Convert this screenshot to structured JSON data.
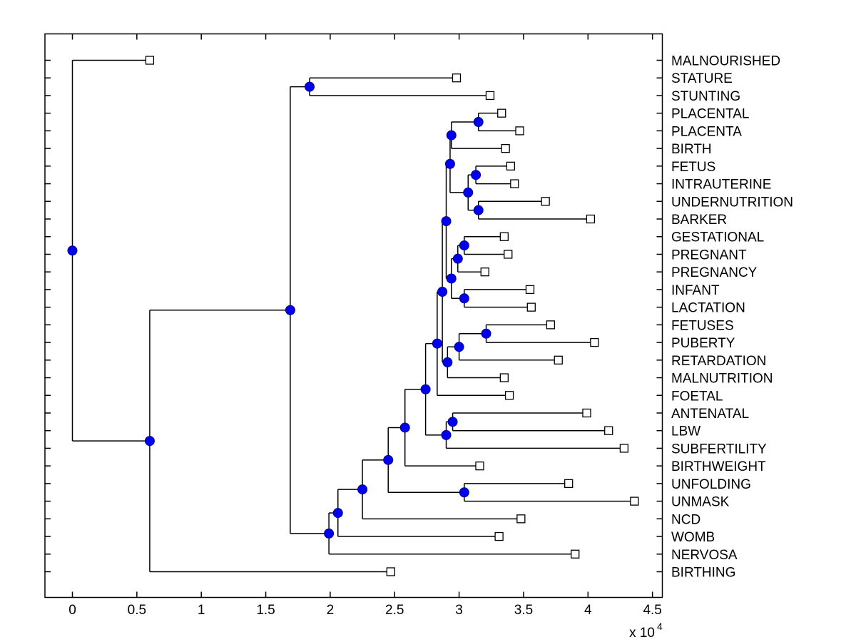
{
  "window": {
    "background": "#ffffff"
  },
  "chart_data": {
    "type": "dendrogram",
    "title": "",
    "orientation": "horizontal, root at left, leaves on right",
    "grid": false,
    "legend": false,
    "x_axis": {
      "range": [
        0,
        4.5
      ],
      "tick_labels": [
        "0",
        "0.5",
        "1",
        "1.5",
        "2",
        "2.5",
        "3",
        "3.5",
        "4",
        "4.5"
      ],
      "tick_values": [
        0,
        0.5,
        1,
        1.5,
        2,
        2.5,
        3,
        3.5,
        4,
        4.5
      ],
      "multiplier_base": "x 10",
      "multiplier_exponent": "4",
      "unit_scale": 10000
    },
    "leaves": [
      {
        "label": "MALNOURISHED",
        "x": 0.6
      },
      {
        "label": "STATURE",
        "x": 2.98
      },
      {
        "label": "STUNTING",
        "x": 3.24
      },
      {
        "label": "PLACENTAL",
        "x": 3.33
      },
      {
        "label": "PLACENTA",
        "x": 3.47
      },
      {
        "label": "BIRTH",
        "x": 3.36
      },
      {
        "label": "FETUS",
        "x": 3.4
      },
      {
        "label": "INTRAUTERINE",
        "x": 3.43
      },
      {
        "label": "UNDERNUTRITION",
        "x": 3.67
      },
      {
        "label": "BARKER",
        "x": 4.02
      },
      {
        "label": "GESTATIONAL",
        "x": 3.35
      },
      {
        "label": "PREGNANT",
        "x": 3.38
      },
      {
        "label": "PREGNANCY",
        "x": 3.2
      },
      {
        "label": "INFANT",
        "x": 3.55
      },
      {
        "label": "LACTATION",
        "x": 3.56
      },
      {
        "label": "FETUSES",
        "x": 3.71
      },
      {
        "label": "PUBERTY",
        "x": 4.05
      },
      {
        "label": "RETARDATION",
        "x": 3.77
      },
      {
        "label": "MALNUTRITION",
        "x": 3.35
      },
      {
        "label": "FOETAL",
        "x": 3.39
      },
      {
        "label": "ANTENATAL",
        "x": 3.99
      },
      {
        "label": "LBW",
        "x": 4.16
      },
      {
        "label": "SUBFERTILITY",
        "x": 4.28
      },
      {
        "label": "BIRTHWEIGHT",
        "x": 3.16
      },
      {
        "label": "UNFOLDING",
        "x": 3.85
      },
      {
        "label": "UNMASK",
        "x": 4.36
      },
      {
        "label": "NCD",
        "x": 3.48
      },
      {
        "label": "WOMB",
        "x": 3.31
      },
      {
        "label": "NERVOSA",
        "x": 3.9
      },
      {
        "label": "BIRTHING",
        "x": 2.47
      }
    ],
    "internal_nodes": [
      {
        "id": "nSS",
        "x": 1.84,
        "children": [
          "STATURE",
          "STUNTING"
        ]
      },
      {
        "id": "nPP",
        "x": 3.15,
        "children": [
          "PLACENTAL",
          "PLACENTA"
        ]
      },
      {
        "id": "nA",
        "x": 2.94,
        "children": [
          "nPP",
          "BIRTH"
        ]
      },
      {
        "id": "nFI",
        "x": 3.13,
        "children": [
          "FETUS",
          "INTRAUTERINE"
        ]
      },
      {
        "id": "nUB",
        "x": 3.15,
        "children": [
          "UNDERNUTRITION",
          "BARKER"
        ]
      },
      {
        "id": "nC",
        "x": 3.07,
        "children": [
          "nFI",
          "nUB"
        ]
      },
      {
        "id": "nB",
        "x": 2.93,
        "children": [
          "nA",
          "nC"
        ]
      },
      {
        "id": "nGP",
        "x": 3.04,
        "children": [
          "GESTATIONAL",
          "PREGNANT"
        ]
      },
      {
        "id": "nGP2",
        "x": 2.99,
        "children": [
          "nGP",
          "PREGNANCY"
        ]
      },
      {
        "id": "nIL",
        "x": 3.04,
        "children": [
          "INFANT",
          "LACTATION"
        ]
      },
      {
        "id": "nE",
        "x": 2.94,
        "children": [
          "nGP2",
          "nIL"
        ]
      },
      {
        "id": "nD",
        "x": 2.9,
        "children": [
          "nB",
          "nE"
        ]
      },
      {
        "id": "nFP",
        "x": 3.21,
        "children": [
          "FETUSES",
          "PUBERTY"
        ]
      },
      {
        "id": "nH",
        "x": 3.0,
        "children": [
          "nFP",
          "RETARDATION"
        ]
      },
      {
        "id": "nG",
        "x": 2.91,
        "children": [
          "nH",
          "MALNUTRITION"
        ]
      },
      {
        "id": "nF",
        "x": 2.87,
        "children": [
          "nD",
          "nG"
        ]
      },
      {
        "id": "nI",
        "x": 2.83,
        "children": [
          "nF",
          "FOETAL"
        ]
      },
      {
        "id": "nM",
        "x": 2.95,
        "children": [
          "ANTENATAL",
          "LBW"
        ]
      },
      {
        "id": "nL",
        "x": 2.9,
        "children": [
          "nM",
          "SUBFERTILITY"
        ]
      },
      {
        "id": "nJ",
        "x": 2.74,
        "children": [
          "nI",
          "nL"
        ]
      },
      {
        "id": "nK",
        "x": 2.58,
        "children": [
          "nJ",
          "BIRTHWEIGHT"
        ]
      },
      {
        "id": "nO",
        "x": 3.04,
        "children": [
          "UNFOLDING",
          "UNMASK"
        ]
      },
      {
        "id": "nN",
        "x": 2.45,
        "children": [
          "nK",
          "nO"
        ]
      },
      {
        "id": "nP",
        "x": 2.25,
        "children": [
          "nN",
          "NCD"
        ]
      },
      {
        "id": "nQ",
        "x": 2.06,
        "children": [
          "nP",
          "WOMB"
        ]
      },
      {
        "id": "nR",
        "x": 1.99,
        "children": [
          "nQ",
          "NERVOSA"
        ]
      },
      {
        "id": "n3",
        "x": 1.69,
        "children": [
          "nSS",
          "nR"
        ]
      },
      {
        "id": "n2",
        "x": 0.6,
        "children": [
          "n3",
          "BIRTHING"
        ]
      },
      {
        "id": "root",
        "x": 0.0,
        "children": [
          "MALNOURISHED",
          "n2"
        ]
      }
    ],
    "style": {
      "line_color": "#000000",
      "node_marker": "filled-circle",
      "node_marker_fill": "#0000EE",
      "node_marker_edge": "#000090",
      "leaf_marker": "open-square",
      "leaf_marker_fill": "#FFFFFF",
      "leaf_marker_edge": "#000000",
      "background": "#FFFFFF"
    }
  }
}
